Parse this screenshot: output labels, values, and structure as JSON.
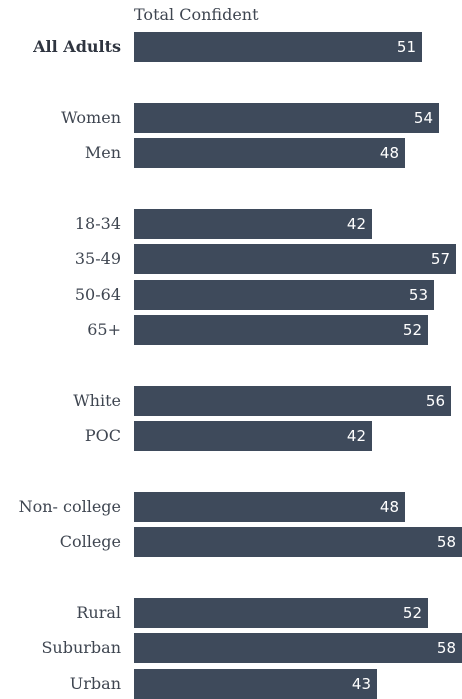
{
  "chart_data": {
    "type": "bar",
    "orientation": "horizontal",
    "column_header": "Total Confident",
    "bar_color": "#3e4a5b",
    "xlim": [
      0,
      58
    ],
    "groups": [
      {
        "rows": [
          {
            "label": "All Adults",
            "value": 51,
            "bold": true
          }
        ]
      },
      {
        "rows": [
          {
            "label": "Women",
            "value": 54
          },
          {
            "label": "Men",
            "value": 48
          }
        ]
      },
      {
        "rows": [
          {
            "label": "18-34",
            "value": 42
          },
          {
            "label": "35-49",
            "value": 57
          },
          {
            "label": "50-64",
            "value": 53
          },
          {
            "label": "65+",
            "value": 52
          }
        ]
      },
      {
        "rows": [
          {
            "label": "White",
            "value": 56
          },
          {
            "label": "POC",
            "value": 42
          }
        ]
      },
      {
        "rows": [
          {
            "label": "Non- college",
            "value": 48
          },
          {
            "label": "College",
            "value": 58
          }
        ]
      },
      {
        "rows": [
          {
            "label": "Rural",
            "value": 52
          },
          {
            "label": "Suburban",
            "value": 58
          },
          {
            "label": "Urban",
            "value": 43
          }
        ]
      }
    ]
  }
}
